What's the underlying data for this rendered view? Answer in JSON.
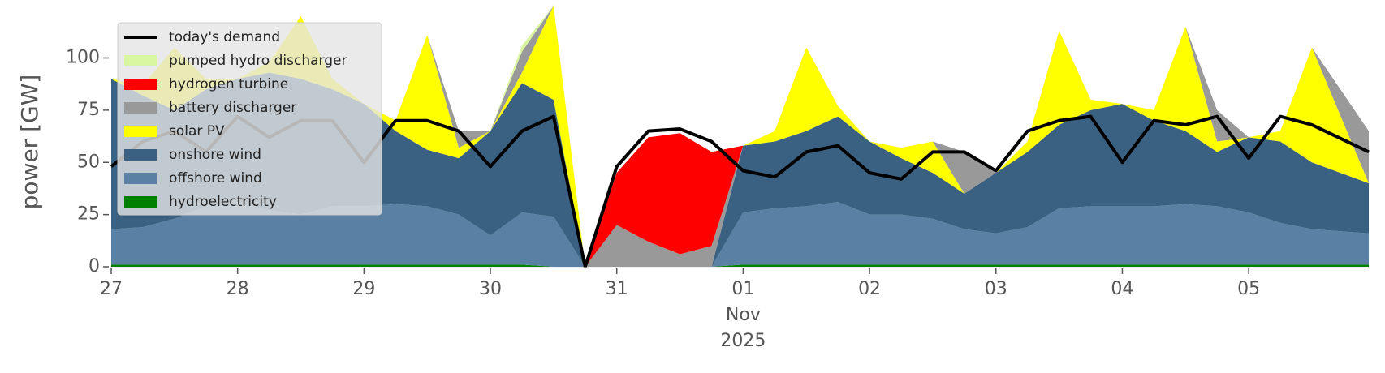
{
  "chart_data": {
    "type": "stacked_area",
    "ylabel": "power [GW]",
    "x": [
      0,
      0.25,
      0.5,
      0.75,
      1,
      1.25,
      1.5,
      1.75,
      2,
      2.25,
      2.5,
      2.75,
      3,
      3.25,
      3.5,
      3.75,
      4,
      4.25,
      4.5,
      4.75,
      5,
      5.25,
      5.5,
      5.75,
      6,
      6.25,
      6.5,
      6.75,
      7,
      7.25,
      7.5,
      7.75,
      8,
      8.25,
      8.5,
      8.75,
      9,
      9.25,
      9.5,
      9.95
    ],
    "xlim": [
      0,
      9.95
    ],
    "xticks": [
      {
        "value": 0,
        "label": "27"
      },
      {
        "value": 1,
        "label": "28"
      },
      {
        "value": 2,
        "label": "29"
      },
      {
        "value": 3,
        "label": "30"
      },
      {
        "value": 4,
        "label": "31"
      },
      {
        "value": 5,
        "label": "01"
      },
      {
        "value": 6,
        "label": "02"
      },
      {
        "value": 7,
        "label": "03"
      },
      {
        "value": 8,
        "label": "04"
      },
      {
        "value": 9,
        "label": "05"
      }
    ],
    "xtick_sublabels": [
      "Nov",
      "2025"
    ],
    "ylim": [
      0,
      120
    ],
    "yticks": [
      0,
      25,
      50,
      75,
      100
    ],
    "legend": "upper-left",
    "line_series": {
      "name": "today's demand",
      "color": "#000000",
      "values": [
        48,
        60,
        65,
        55,
        72,
        62,
        70,
        70,
        50,
        70,
        70,
        65,
        48,
        65,
        72,
        0,
        48,
        65,
        66,
        60,
        46,
        43,
        55,
        58,
        45,
        42,
        55,
        55,
        46,
        65,
        70,
        72,
        50,
        70,
        68,
        72,
        52,
        72,
        68,
        55
      ]
    },
    "series": [
      {
        "name": "pumped hydro discharger",
        "color": "#d9f7a1",
        "values": [
          0,
          0,
          0,
          0,
          0,
          0,
          0,
          0,
          0,
          0,
          0,
          0,
          0,
          3,
          0,
          0,
          0,
          0,
          0,
          0,
          0,
          0,
          0,
          0,
          0,
          0,
          0,
          0,
          0,
          0,
          0,
          0,
          0,
          0,
          0,
          0,
          0,
          0,
          0,
          0
        ]
      },
      {
        "name": "hydrogen turbine",
        "color": "#ff0000",
        "values": [
          0,
          0,
          0,
          0,
          0,
          0,
          0,
          0,
          0,
          0,
          0,
          0,
          0,
          0,
          0,
          0,
          25,
          50,
          58,
          45,
          0,
          0,
          0,
          0,
          0,
          0,
          0,
          0,
          0,
          0,
          0,
          0,
          0,
          0,
          0,
          0,
          0,
          0,
          0,
          0
        ]
      },
      {
        "name": "battery discharger",
        "color": "#999999",
        "values": [
          0,
          0,
          0,
          0,
          0,
          0,
          0,
          0,
          0,
          0,
          0,
          8,
          0,
          10,
          0,
          0,
          20,
          12,
          6,
          10,
          0,
          0,
          0,
          0,
          0,
          0,
          0,
          20,
          0,
          0,
          0,
          0,
          0,
          0,
          0,
          15,
          0,
          0,
          0,
          25
        ]
      },
      {
        "name": "solar PV",
        "color": "#ffff00",
        "values": [
          0,
          5,
          30,
          5,
          0,
          5,
          30,
          5,
          0,
          5,
          55,
          5,
          0,
          5,
          45,
          0,
          0,
          0,
          0,
          0,
          0,
          5,
          40,
          5,
          0,
          5,
          15,
          0,
          0,
          5,
          45,
          5,
          0,
          5,
          50,
          5,
          0,
          5,
          55,
          0
        ]
      },
      {
        "name": "onshore wind",
        "color": "#3b6182",
        "values": [
          72,
          63,
          52,
          56,
          59,
          66,
          65,
          56,
          49,
          35,
          27,
          27,
          50,
          62,
          56,
          0,
          0,
          0,
          0,
          0,
          32,
          32,
          36,
          41,
          35,
          27,
          22,
          17,
          29,
          36,
          40,
          46,
          49,
          41,
          35,
          26,
          36,
          39,
          32,
          24
        ]
      },
      {
        "name": "offshore wind",
        "color": "#5a80a3",
        "values": [
          17,
          18,
          22,
          28,
          30,
          26,
          24,
          28,
          28,
          29,
          28,
          24,
          14,
          25,
          24,
          0,
          0,
          0,
          0,
          0,
          25,
          27,
          28,
          30,
          24,
          24,
          22,
          17,
          15,
          18,
          27,
          28,
          28,
          28,
          29,
          28,
          25,
          20,
          17,
          15
        ]
      },
      {
        "name": "hydroelectricity",
        "color": "#008000",
        "values": [
          1,
          1,
          1,
          1,
          1,
          1,
          1,
          1,
          1,
          1,
          1,
          1,
          1,
          1,
          0,
          0,
          0,
          0,
          0,
          0,
          1,
          1,
          1,
          1,
          1,
          1,
          1,
          1,
          1,
          1,
          1,
          1,
          1,
          1,
          1,
          1,
          1,
          1,
          1,
          1
        ]
      }
    ]
  }
}
